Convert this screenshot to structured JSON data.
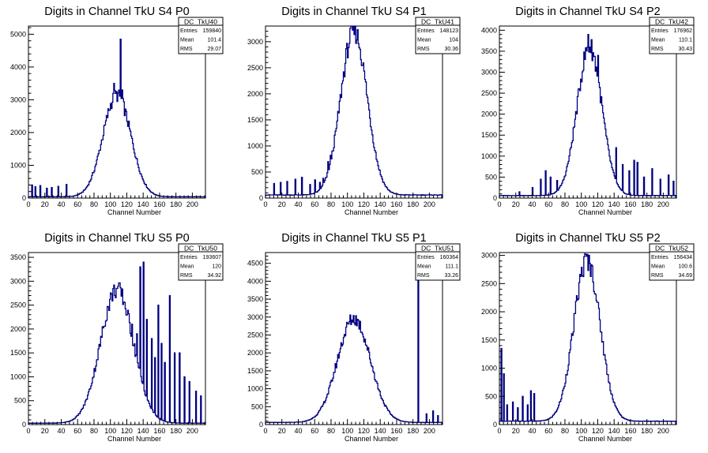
{
  "line_color": "#000080",
  "axis_color": "#000000",
  "chart_data": [
    {
      "type": "histogram",
      "title": "Digits in Channel TkU S4 P0",
      "xlabel": "Channel Number",
      "xlim": [
        0,
        216
      ],
      "ylim": [
        0,
        5250
      ],
      "xticks": [
        0,
        20,
        40,
        60,
        80,
        100,
        120,
        140,
        160,
        180,
        200
      ],
      "yticks": [
        0,
        1000,
        2000,
        3000,
        4000,
        5000
      ],
      "stats": {
        "name": "DC_TkU40",
        "rows": [
          {
            "label": "Entries",
            "value": "159840"
          },
          {
            "label": "Mean",
            "value": "101.4"
          },
          {
            "label": "RMS",
            "value": "29.07"
          }
        ]
      },
      "shape": {
        "mu": 108,
        "sigma": 17,
        "peak": 3100,
        "base": 40
      },
      "spikes": [
        {
          "x": 4,
          "y": 400
        },
        {
          "x": 8,
          "y": 350
        },
        {
          "x": 14,
          "y": 380
        },
        {
          "x": 22,
          "y": 300
        },
        {
          "x": 28,
          "y": 320
        },
        {
          "x": 36,
          "y": 360
        },
        {
          "x": 46,
          "y": 420
        },
        {
          "x": 104,
          "y": 3500
        },
        {
          "x": 112,
          "y": 4850
        },
        {
          "x": 114,
          "y": 3300
        }
      ]
    },
    {
      "type": "histogram",
      "title": "Digits in Channel TkU S4 P1",
      "xlabel": "Channel Number",
      "xlim": [
        0,
        216
      ],
      "ylim": [
        0,
        3300
      ],
      "xticks": [
        0,
        20,
        40,
        60,
        80,
        100,
        120,
        140,
        160,
        180,
        200
      ],
      "yticks": [
        0,
        500,
        1000,
        1500,
        2000,
        2500,
        3000
      ],
      "stats": {
        "name": "DC_TkU41",
        "rows": [
          {
            "label": "Entries",
            "value": "148123"
          },
          {
            "label": "Mean",
            "value": "104"
          },
          {
            "label": "RMS",
            "value": "30.36"
          }
        ]
      },
      "shape": {
        "mu": 108,
        "sigma": 16,
        "peak": 3150,
        "base": 60
      },
      "spikes": [
        {
          "x": 10,
          "y": 280
        },
        {
          "x": 18,
          "y": 300
        },
        {
          "x": 26,
          "y": 320
        },
        {
          "x": 36,
          "y": 360
        },
        {
          "x": 44,
          "y": 400
        },
        {
          "x": 54,
          "y": 260
        },
        {
          "x": 60,
          "y": 350
        },
        {
          "x": 66,
          "y": 300
        },
        {
          "x": 70,
          "y": 380
        },
        {
          "x": 76,
          "y": 700
        },
        {
          "x": 79,
          "y": 820
        },
        {
          "x": 82,
          "y": 500
        }
      ]
    },
    {
      "type": "histogram",
      "title": "Digits in Channel TkU S4 P2",
      "xlabel": "Channel Number",
      "xlim": [
        0,
        216
      ],
      "ylim": [
        0,
        4100
      ],
      "xticks": [
        0,
        20,
        40,
        60,
        80,
        100,
        120,
        140,
        160,
        180,
        200
      ],
      "yticks": [
        0,
        500,
        1000,
        1500,
        2000,
        2500,
        3000,
        3500,
        4000
      ],
      "stats": {
        "name": "DC_TkU42",
        "rows": [
          {
            "label": "Entries",
            "value": "176962"
          },
          {
            "label": "Mean",
            "value": "110.1"
          },
          {
            "label": "RMS",
            "value": "30.43"
          }
        ]
      },
      "shape": {
        "mu": 110,
        "sigma": 15,
        "peak": 3550,
        "base": 60
      },
      "spikes": [
        {
          "x": 24,
          "y": 150
        },
        {
          "x": 40,
          "y": 250
        },
        {
          "x": 50,
          "y": 450
        },
        {
          "x": 56,
          "y": 650
        },
        {
          "x": 62,
          "y": 500
        },
        {
          "x": 70,
          "y": 420
        },
        {
          "x": 108,
          "y": 3900
        },
        {
          "x": 120,
          "y": 3400
        },
        {
          "x": 142,
          "y": 1200
        },
        {
          "x": 150,
          "y": 800
        },
        {
          "x": 158,
          "y": 650
        },
        {
          "x": 164,
          "y": 900
        },
        {
          "x": 168,
          "y": 850
        },
        {
          "x": 176,
          "y": 500
        },
        {
          "x": 186,
          "y": 700
        },
        {
          "x": 196,
          "y": 450
        },
        {
          "x": 206,
          "y": 550
        },
        {
          "x": 212,
          "y": 400
        }
      ]
    },
    {
      "type": "histogram",
      "title": "Digits in Channel TkU S5 P0",
      "xlabel": "Channel Number",
      "xlim": [
        0,
        216
      ],
      "ylim": [
        0,
        3600
      ],
      "xticks": [
        0,
        20,
        40,
        60,
        80,
        100,
        120,
        140,
        160,
        180,
        200
      ],
      "yticks": [
        0,
        500,
        1000,
        1500,
        2000,
        2500,
        3000,
        3500
      ],
      "stats": {
        "name": "DC_TkU50",
        "rows": [
          {
            "label": "Entries",
            "value": "193607"
          },
          {
            "label": "Mean",
            "value": "120"
          },
          {
            "label": "RMS",
            "value": "34.92"
          }
        ]
      },
      "shape": {
        "mu": 108,
        "sigma": 20,
        "peak": 2800,
        "base": 30
      },
      "spikes": [
        {
          "x": 126,
          "y": 2100
        },
        {
          "x": 132,
          "y": 1900
        },
        {
          "x": 136,
          "y": 3300
        },
        {
          "x": 140,
          "y": 3400
        },
        {
          "x": 144,
          "y": 2200
        },
        {
          "x": 150,
          "y": 1800
        },
        {
          "x": 154,
          "y": 1400
        },
        {
          "x": 158,
          "y": 2500
        },
        {
          "x": 162,
          "y": 1700
        },
        {
          "x": 166,
          "y": 1300
        },
        {
          "x": 172,
          "y": 2700
        },
        {
          "x": 178,
          "y": 1500
        },
        {
          "x": 184,
          "y": 1500
        },
        {
          "x": 190,
          "y": 1000
        },
        {
          "x": 196,
          "y": 900
        },
        {
          "x": 204,
          "y": 700
        },
        {
          "x": 210,
          "y": 600
        }
      ]
    },
    {
      "type": "histogram",
      "title": "Digits in Channel TkU S5 P1",
      "xlabel": "Channel Number",
      "xlim": [
        0,
        216
      ],
      "ylim": [
        0,
        4800
      ],
      "xticks": [
        0,
        20,
        40,
        60,
        80,
        100,
        120,
        140,
        160,
        180,
        200
      ],
      "yticks": [
        0,
        500,
        1000,
        1500,
        2000,
        2500,
        3000,
        3500,
        4000,
        4500
      ],
      "stats": {
        "name": "DC_TkU51",
        "rows": [
          {
            "label": "Entries",
            "value": "160364"
          },
          {
            "label": "Mean",
            "value": "111.1"
          },
          {
            "label": "RMS",
            "value": "33.26"
          }
        ]
      },
      "shape": {
        "mu": 108,
        "sigma": 20,
        "peak": 2900,
        "base": 60
      },
      "spikes": [
        {
          "x": 186,
          "y": 4600
        },
        {
          "x": 196,
          "y": 300
        },
        {
          "x": 204,
          "y": 380
        },
        {
          "x": 210,
          "y": 250
        }
      ]
    },
    {
      "type": "histogram",
      "title": "Digits in Channel TkU S5 P2",
      "xlabel": "Channel Number",
      "xlim": [
        0,
        216
      ],
      "ylim": [
        0,
        3050
      ],
      "xticks": [
        0,
        20,
        40,
        60,
        80,
        100,
        120,
        140,
        160,
        180,
        200
      ],
      "yticks": [
        0,
        500,
        1000,
        1500,
        2000,
        2500,
        3000
      ],
      "stats": {
        "name": "DC_TkU52",
        "rows": [
          {
            "label": "Entries",
            "value": "156434"
          },
          {
            "label": "Mean",
            "value": "100.6"
          },
          {
            "label": "RMS",
            "value": "34.69"
          }
        ]
      },
      "shape": {
        "mu": 107,
        "sigma": 16,
        "peak": 2850,
        "base": 60
      },
      "spikes": [
        {
          "x": 2,
          "y": 1350
        },
        {
          "x": 5,
          "y": 900
        },
        {
          "x": 9,
          "y": 350
        },
        {
          "x": 16,
          "y": 400
        },
        {
          "x": 22,
          "y": 300
        },
        {
          "x": 28,
          "y": 500
        },
        {
          "x": 34,
          "y": 350
        },
        {
          "x": 38,
          "y": 600
        },
        {
          "x": 42,
          "y": 550
        }
      ]
    }
  ]
}
